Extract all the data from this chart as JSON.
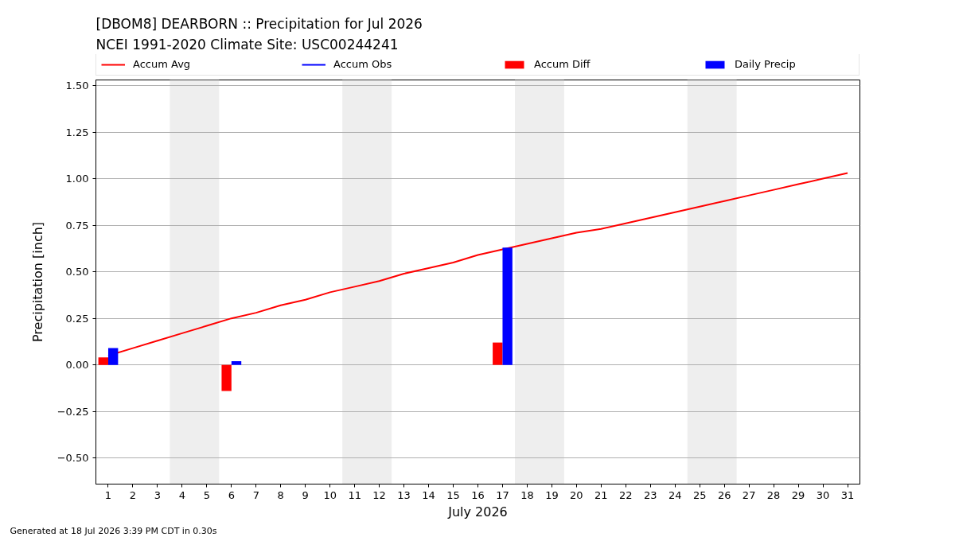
{
  "chart_data": {
    "type": "bar",
    "title": "[DBOM8] DEARBORN :: Precipitation for Jul 2026",
    "subtitle": "NCEI 1991-2020 Climate Site: USC00244241",
    "xlabel": "July 2026",
    "ylabel": "Precipitation [inch]",
    "annotations": [
      "Generated at 18 Jul 2026 3:39 PM CDT in 0.30s"
    ],
    "x": [
      1,
      2,
      3,
      4,
      5,
      6,
      7,
      8,
      9,
      10,
      11,
      12,
      13,
      14,
      15,
      16,
      17,
      18,
      19,
      20,
      21,
      22,
      23,
      24,
      25,
      26,
      27,
      28,
      29,
      30,
      31
    ],
    "xlim": [
      0.5,
      31.5
    ],
    "xticks": [
      1,
      2,
      3,
      4,
      5,
      6,
      7,
      8,
      9,
      10,
      11,
      12,
      13,
      14,
      15,
      16,
      17,
      18,
      19,
      20,
      21,
      22,
      23,
      24,
      25,
      26,
      27,
      28,
      29,
      30,
      31
    ],
    "ylim": [
      -0.64,
      1.53
    ],
    "yticks": [
      {
        "value": -0.5,
        "label": "−0.50"
      },
      {
        "value": -0.25,
        "label": "−0.25"
      },
      {
        "value": 0,
        "label": "0.00"
      },
      {
        "value": 0.25,
        "label": "0.25"
      },
      {
        "value": 0.5,
        "label": "0.50"
      },
      {
        "value": 0.75,
        "label": "0.75"
      },
      {
        "value": 1.0,
        "label": "1.00"
      },
      {
        "value": 1.25,
        "label": "1.25"
      },
      {
        "value": 1.5,
        "label": "1.50"
      }
    ],
    "grid": "y",
    "legend": "top",
    "marker": "none",
    "line_style": "solid",
    "bands": [
      {
        "axis": "x",
        "from": 3.5,
        "to": 5.5,
        "color": "#eeeeee"
      },
      {
        "axis": "x",
        "from": 10.5,
        "to": 12.5,
        "color": "#eeeeee"
      },
      {
        "axis": "x",
        "from": 17.5,
        "to": 19.5,
        "color": "#eeeeee"
      },
      {
        "axis": "x",
        "from": 24.5,
        "to": 26.5,
        "color": "#eeeeee"
      }
    ],
    "series": [
      {
        "name": "Accum Avg",
        "type": "line",
        "color": "#ff0000",
        "values": [
          0.05,
          0.09,
          0.13,
          0.17,
          0.21,
          0.25,
          0.28,
          0.32,
          0.35,
          0.39,
          0.42,
          0.45,
          0.49,
          0.52,
          0.55,
          0.59,
          0.62,
          0.65,
          0.68,
          0.71,
          0.73,
          0.76,
          0.79,
          0.82,
          0.85,
          0.88,
          0.91,
          0.94,
          0.97,
          1.0,
          1.03
        ]
      },
      {
        "name": "Accum Obs",
        "type": "line",
        "color": "#0000ff",
        "values": [
          null,
          null,
          null,
          null,
          null,
          null,
          null,
          null,
          null,
          null,
          null,
          null,
          null,
          null,
          null,
          null,
          null,
          null,
          null,
          null,
          null,
          null,
          null,
          null,
          null,
          null,
          null,
          null,
          null,
          null,
          null
        ]
      },
      {
        "name": "Accum Diff",
        "color": "#ff0000",
        "values": [
          0.04,
          null,
          null,
          null,
          null,
          -0.14,
          null,
          null,
          null,
          null,
          null,
          null,
          null,
          null,
          null,
          null,
          0.12,
          null,
          null,
          null,
          null,
          null,
          null,
          null,
          null,
          null,
          null,
          null,
          null,
          null,
          null
        ]
      },
      {
        "name": "Daily Precip",
        "color": "#0000ff",
        "values": [
          0.09,
          null,
          null,
          null,
          null,
          0.02,
          null,
          null,
          null,
          null,
          null,
          null,
          null,
          null,
          null,
          null,
          0.63,
          null,
          null,
          null,
          null,
          null,
          null,
          null,
          null,
          null,
          null,
          null,
          null,
          null,
          null
        ]
      }
    ]
  }
}
